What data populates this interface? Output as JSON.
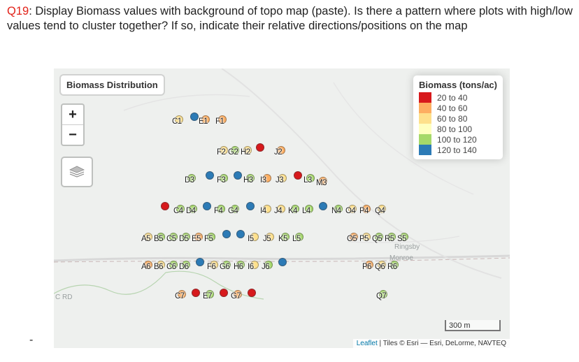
{
  "question": {
    "number": "Q19",
    "text": ": Display Biomass values with background of topo map (paste). Is there a pattern where plots with high/low values tend to cluster together? If so, indicate their relative directions/positions on the map"
  },
  "dash": "-",
  "map": {
    "title": "Biomass Distribution",
    "zoom_in": "+",
    "zoom_out": "−",
    "layers_icon": "layers-icon",
    "legend": {
      "title": "Biomass (tons/ac)",
      "items": [
        {
          "label": "20 to 40",
          "color": "#d7191c"
        },
        {
          "label": "40 to 60",
          "color": "#fdae61"
        },
        {
          "label": "60 to 80",
          "color": "#fee08b"
        },
        {
          "label": "80 to 100",
          "color": "#ffffbf"
        },
        {
          "label": "100 to 120",
          "color": "#a6d96a"
        },
        {
          "label": "120 to 140",
          "color": "#2c7bb6"
        }
      ]
    },
    "scale": "300 m",
    "attribution_link": "Leaflet",
    "attribution_text": " | Tiles © Esri — Esri, DeLorme, NAVTEQ",
    "place_labels": [
      "Monroe",
      "Ringsby",
      "C RD"
    ],
    "plots": [
      {
        "label": "C1",
        "color": "#fee08b"
      },
      {
        "label": "",
        "color": "#2c7bb6"
      },
      {
        "label": "E1",
        "color": "#fdae61"
      },
      {
        "label": "F1",
        "color": "#fdae61"
      },
      {
        "label": "F2",
        "color": "#fee08b"
      },
      {
        "label": "G2",
        "color": "#a6d96a"
      },
      {
        "label": "H2",
        "color": "#fee08b"
      },
      {
        "label": "",
        "color": "#d7191c"
      },
      {
        "label": "J2",
        "color": "#fdae61"
      },
      {
        "label": "D3",
        "color": "#a6d96a"
      },
      {
        "label": "",
        "color": "#2c7bb6"
      },
      {
        "label": "F3",
        "color": "#a6d96a"
      },
      {
        "label": "",
        "color": "#2c7bb6"
      },
      {
        "label": "H3",
        "color": "#a6d96a"
      },
      {
        "label": "I3",
        "color": "#fdae61"
      },
      {
        "label": "J3",
        "color": "#fee08b"
      },
      {
        "label": "",
        "color": "#d7191c"
      },
      {
        "label": "L3",
        "color": "#a6d96a"
      },
      {
        "label": "M3",
        "color": "#fdae61"
      },
      {
        "label": "",
        "color": "#d7191c"
      },
      {
        "label": "C4",
        "color": "#a6d96a"
      },
      {
        "label": "D4",
        "color": "#a6d96a"
      },
      {
        "label": "",
        "color": "#2c7bb6"
      },
      {
        "label": "F4",
        "color": "#a6d96a"
      },
      {
        "label": "G4",
        "color": "#a6d96a"
      },
      {
        "label": "",
        "color": "#2c7bb6"
      },
      {
        "label": "I4",
        "color": "#fee08b"
      },
      {
        "label": "J4",
        "color": "#fee08b"
      },
      {
        "label": "K4",
        "color": "#a6d96a"
      },
      {
        "label": "L4",
        "color": "#a6d96a"
      },
      {
        "label": "",
        "color": "#2c7bb6"
      },
      {
        "label": "N4",
        "color": "#a6d96a"
      },
      {
        "label": "O4",
        "color": "#fee08b"
      },
      {
        "label": "P4",
        "color": "#fdae61"
      },
      {
        "label": "Q4",
        "color": "#fee08b"
      },
      {
        "label": "A5",
        "color": "#fee08b"
      },
      {
        "label": "B5",
        "color": "#a6d96a"
      },
      {
        "label": "C5",
        "color": "#a6d96a"
      },
      {
        "label": "D5",
        "color": "#a6d96a"
      },
      {
        "label": "E5",
        "color": "#fdae61"
      },
      {
        "label": "F5",
        "color": "#a6d96a"
      },
      {
        "label": "",
        "color": "#2c7bb6"
      },
      {
        "label": "",
        "color": "#2c7bb6"
      },
      {
        "label": "I5",
        "color": "#fee08b"
      },
      {
        "label": "J5",
        "color": "#fee08b"
      },
      {
        "label": "K5",
        "color": "#a6d96a"
      },
      {
        "label": "L5",
        "color": "#a6d96a"
      },
      {
        "label": "O5",
        "color": "#fdae61"
      },
      {
        "label": "P5",
        "color": "#fee08b"
      },
      {
        "label": "Q5",
        "color": "#a6d96a"
      },
      {
        "label": "R5",
        "color": "#a6d96a"
      },
      {
        "label": "S5",
        "color": "#a6d96a"
      },
      {
        "label": "A6",
        "color": "#fdae61"
      },
      {
        "label": "B6",
        "color": "#fee08b"
      },
      {
        "label": "C6",
        "color": "#a6d96a"
      },
      {
        "label": "D6",
        "color": "#a6d96a"
      },
      {
        "label": "",
        "color": "#2c7bb6"
      },
      {
        "label": "F6",
        "color": "#fee08b"
      },
      {
        "label": "G6",
        "color": "#a6d96a"
      },
      {
        "label": "H6",
        "color": "#a6d96a"
      },
      {
        "label": "I6",
        "color": "#fee08b"
      },
      {
        "label": "J6",
        "color": "#a6d96a"
      },
      {
        "label": "",
        "color": "#2c7bb6"
      },
      {
        "label": "P6",
        "color": "#fdae61"
      },
      {
        "label": "Q6",
        "color": "#fee08b"
      },
      {
        "label": "R6",
        "color": "#a6d96a"
      },
      {
        "label": "C7",
        "color": "#fdae61"
      },
      {
        "label": "",
        "color": "#d7191c"
      },
      {
        "label": "E7",
        "color": "#a6d96a"
      },
      {
        "label": "",
        "color": "#d7191c"
      },
      {
        "label": "G7",
        "color": "#fdae61"
      },
      {
        "label": "",
        "color": "#d7191c"
      },
      {
        "label": "Q7",
        "color": "#a6d96a"
      }
    ]
  }
}
